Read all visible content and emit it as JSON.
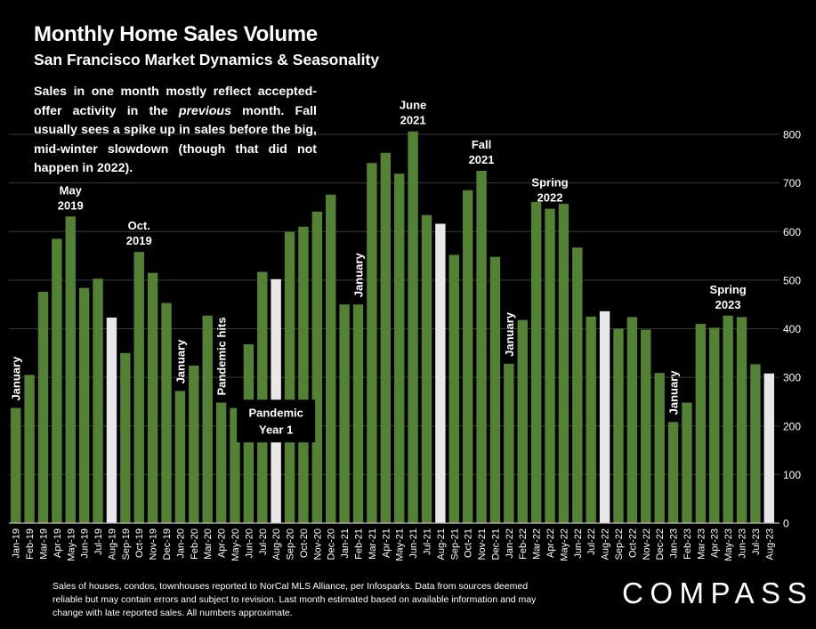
{
  "title": "Monthly Home Sales Volume",
  "subtitle": "San Francisco Market Dynamics & Seasonality",
  "intro": {
    "part1": "Sales in one month mostly reflect accepted-offer activity in the ",
    "emphasis": "previous",
    "part2": " month. Fall usually sees a spike up in sales before the big, mid-winter slowdown (though that did not happen in 2022)."
  },
  "footnote": "Sales of houses, condos, townhouses reported to NorCal MLS Alliance, per Infosparks. Data from sources deemed reliable but may contain errors and subject to revision. Last month estimated based on available information and may change with late reported sales. All numbers approximate.",
  "brand": "COMPASS",
  "colors": {
    "bar": "#548235",
    "highlight_bar": "#e8e8e8",
    "background": "#000000",
    "grid": "#3a3a3a",
    "text": "#ffffff"
  },
  "chart_data": {
    "type": "bar",
    "title": "Monthly Home Sales Volume",
    "subtitle": "San Francisco Market Dynamics & Seasonality",
    "xlabel": "",
    "ylabel": "",
    "ylim": [
      0,
      800
    ],
    "yticks": [
      0,
      100,
      200,
      300,
      400,
      500,
      600,
      700,
      800
    ],
    "y_axis_side": "right",
    "grid": true,
    "legend": "none",
    "categories": [
      "Jan-19",
      "Feb-19",
      "Mar-19",
      "Apr-19",
      "May-19",
      "Jun-19",
      "Jul-19",
      "Aug-19",
      "Sep-19",
      "Oct-19",
      "Nov-19",
      "Dec-19",
      "Jan-20",
      "Feb-20",
      "Mar-20",
      "Apr-20",
      "May-20",
      "Jun-20",
      "Jul-20",
      "Aug-20",
      "Sep-20",
      "Oct-20",
      "Nov-20",
      "Dec-20",
      "Jan-21",
      "Feb-21",
      "Mar-21",
      "Apr-21",
      "May-21",
      "Jun-21",
      "Jul-21",
      "Aug-21",
      "Sep-21",
      "Oct-21",
      "Nov-21",
      "Dec-21",
      "Jan-22",
      "Feb-22",
      "Mar-22",
      "Apr-22",
      "May-22",
      "Jun-22",
      "Jul-22",
      "Aug-22",
      "Sep-22",
      "Oct-22",
      "Nov-22",
      "Dec-22",
      "Jan-23",
      "Feb-23",
      "Mar-23",
      "Apr-23",
      "May-23",
      "Jun-23",
      "Jul-23",
      "Aug-23"
    ],
    "values": [
      237,
      305,
      476,
      585,
      631,
      484,
      503,
      423,
      350,
      558,
      515,
      453,
      272,
      324,
      427,
      248,
      237,
      368,
      517,
      502,
      599,
      610,
      641,
      676,
      450,
      450,
      741,
      762,
      719,
      806,
      634,
      616,
      552,
      685,
      725,
      548,
      328,
      418,
      661,
      647,
      657,
      567,
      425,
      436,
      400,
      424,
      398,
      309,
      208,
      248,
      410,
      402,
      427,
      424,
      327,
      308
    ],
    "highlighted": [
      "Aug-19",
      "Aug-20",
      "Aug-21",
      "Aug-22",
      "Aug-23"
    ],
    "annotations": [
      {
        "text": "January",
        "category": "Jan-19",
        "rotated": true
      },
      {
        "text": "May\n2019",
        "category": "May-19"
      },
      {
        "text": "Oct.\n2019",
        "category": "Oct-19"
      },
      {
        "text": "January",
        "category": "Jan-20",
        "rotated": true
      },
      {
        "text": "Pandemic hits",
        "category": "Apr-20",
        "rotated": true
      },
      {
        "text": "Pandemic\nYear 1",
        "category": "Aug-20",
        "boxed": true
      },
      {
        "text": "January",
        "category": "Feb-21",
        "rotated": true
      },
      {
        "text": "June\n2021",
        "category": "Jun-21"
      },
      {
        "text": "Fall\n2021",
        "category": "Nov-21"
      },
      {
        "text": "January",
        "category": "Jan-22",
        "rotated": true
      },
      {
        "text": "Spring\n2022",
        "category": "Apr-22"
      },
      {
        "text": "January",
        "category": "Jan-23",
        "rotated": true
      },
      {
        "text": "Spring\n2023",
        "category": "May-23"
      }
    ]
  }
}
